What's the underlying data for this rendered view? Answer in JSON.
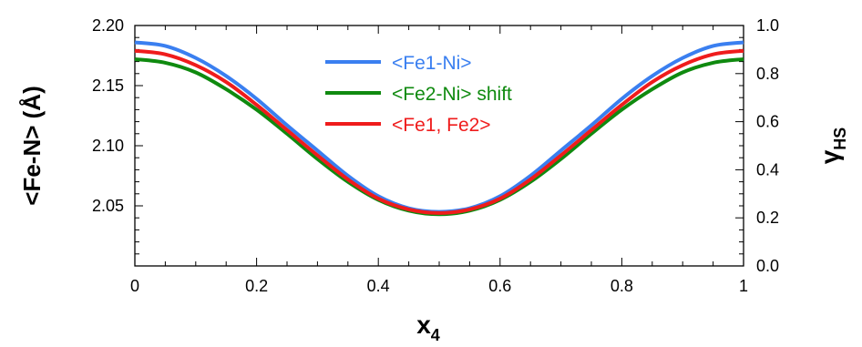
{
  "chart_data": {
    "type": "line",
    "title": "",
    "x_axis": {
      "label": "x",
      "label_subscript": "4",
      "range": [
        0,
        1
      ],
      "ticks": [
        "0",
        "0.2",
        "0.4",
        "0.6",
        "0.8",
        "1"
      ]
    },
    "y_axis_left": {
      "label": "<Fe-N> (Å)",
      "range": [
        2.0,
        2.2
      ],
      "ticks": [
        "2.05",
        "2.10",
        "2.15",
        "2.20"
      ]
    },
    "y_axis_right": {
      "label": "γ",
      "label_subscript": "HS",
      "range": [
        0.0,
        1.0
      ],
      "ticks": [
        "0.0",
        "0.2",
        "0.4",
        "0.6",
        "0.8",
        "1.0"
      ]
    },
    "grid": false,
    "legend_position": "top-center",
    "x": [
      0,
      0.05,
      0.1,
      0.15,
      0.2,
      0.25,
      0.3,
      0.35,
      0.4,
      0.45,
      0.5,
      0.55,
      0.6,
      0.65,
      0.7,
      0.75,
      0.8,
      0.85,
      0.9,
      0.95,
      1.0
    ],
    "series": [
      {
        "name": "<Fe1-Ni>",
        "color": "#3a7ff0",
        "values": [
          2.186,
          2.183,
          2.173,
          2.158,
          2.139,
          2.117,
          2.096,
          2.075,
          2.058,
          2.048,
          2.045,
          2.048,
          2.058,
          2.075,
          2.096,
          2.117,
          2.139,
          2.158,
          2.173,
          2.183,
          2.186
        ]
      },
      {
        "name": "<Fe2-Ni> shift",
        "color": "#0f8a0f",
        "values": [
          2.172,
          2.169,
          2.161,
          2.147,
          2.13,
          2.11,
          2.089,
          2.07,
          2.055,
          2.046,
          2.043,
          2.046,
          2.055,
          2.07,
          2.089,
          2.11,
          2.13,
          2.147,
          2.161,
          2.169,
          2.172
        ]
      },
      {
        "name": "<Fe1, Fe2>",
        "color": "#ef1c1c",
        "values": [
          2.179,
          2.176,
          2.167,
          2.153,
          2.134,
          2.113,
          2.092,
          2.072,
          2.056,
          2.047,
          2.044,
          2.047,
          2.056,
          2.072,
          2.092,
          2.113,
          2.134,
          2.153,
          2.167,
          2.176,
          2.179
        ]
      }
    ]
  }
}
